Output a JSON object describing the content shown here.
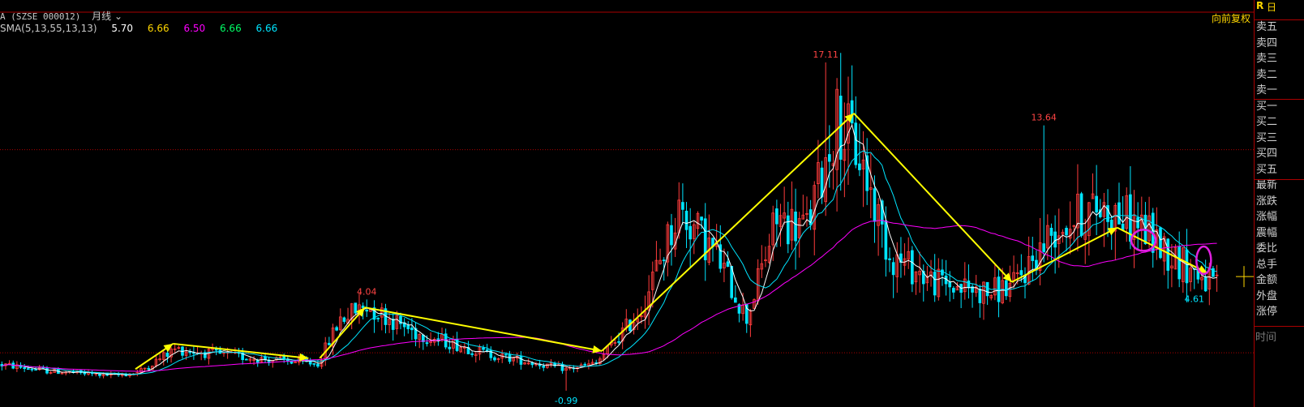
{
  "header": {
    "symbol": "A (SZSE 000012)",
    "period": "月线",
    "sma_label": "SMA(5,13,55,13,13)",
    "sma_values": [
      {
        "value": "5.70",
        "color": "#ffffff"
      },
      {
        "value": "6.66",
        "color": "#ffd700"
      },
      {
        "value": "6.50",
        "color": "#ff00ff"
      },
      {
        "value": "6.66",
        "color": "#00ff66"
      },
      {
        "value": "6.66",
        "color": "#00e5ff"
      }
    ],
    "adjust_mode": "向前复权"
  },
  "side_panel": {
    "top_mark": "R",
    "top_mark2": "日",
    "rows": [
      "卖五",
      "卖四",
      "卖三",
      "卖二",
      "卖一",
      "买一",
      "买二",
      "买三",
      "买四",
      "买五",
      "最新",
      "涨跌",
      "涨幅",
      "震幅",
      "委比",
      "总手",
      "金额",
      "外盘",
      "涨停"
    ],
    "time_label": "时间"
  },
  "chart_data": {
    "type": "candlestick",
    "frequency": "monthly",
    "annotations": [
      {
        "label": "4.04",
        "x": 97,
        "y": 4.04,
        "color": "#ff4444"
      },
      {
        "label": "-0.99",
        "x": 150,
        "y": -0.99,
        "color": "#00e5ff"
      },
      {
        "label": "17.11",
        "x": 219,
        "y": 17.11,
        "color": "#ff4444"
      },
      {
        "label": "13.64",
        "x": 277,
        "y": 13.64,
        "color": "#ff4444"
      },
      {
        "label": "4.61",
        "x": 317,
        "y": 4.61,
        "color": "#00e5ff"
      }
    ],
    "ylim": [
      -1.8,
      19.3
    ],
    "xlim": [
      0,
      332
    ],
    "guide_levels": [
      12.3,
      1.1
    ],
    "moving_averages": [
      {
        "name": "SMA5",
        "color": "#ffffff",
        "current": 5.7
      },
      {
        "name": "SMA13",
        "color": "#00e5ff",
        "current": 6.66
      },
      {
        "name": "SMA55",
        "color": "#ff00ff",
        "current": 6.5
      }
    ],
    "trend_segments": [
      [
        [
          36,
          0.2
        ],
        [
          46,
          1.6
        ]
      ],
      [
        [
          46,
          1.6
        ],
        [
          82,
          0.8
        ]
      ],
      [
        [
          85,
          0.8
        ],
        [
          97,
          3.6
        ]
      ],
      [
        [
          97,
          3.6
        ],
        [
          160,
          1.2
        ]
      ],
      [
        [
          160,
          1.2
        ],
        [
          227,
          14.3
        ]
      ],
      [
        [
          227,
          14.3
        ],
        [
          269,
          5.0
        ]
      ],
      [
        [
          269,
          5.0
        ],
        [
          297,
          8.0
        ]
      ],
      [
        [
          297,
          8.0
        ],
        [
          321,
          5.5
        ]
      ]
    ],
    "marked_regions": [
      {
        "x": 304,
        "y": 7.3
      },
      {
        "x": 320,
        "y": 6.2
      }
    ],
    "price_marker": 5.3
  }
}
